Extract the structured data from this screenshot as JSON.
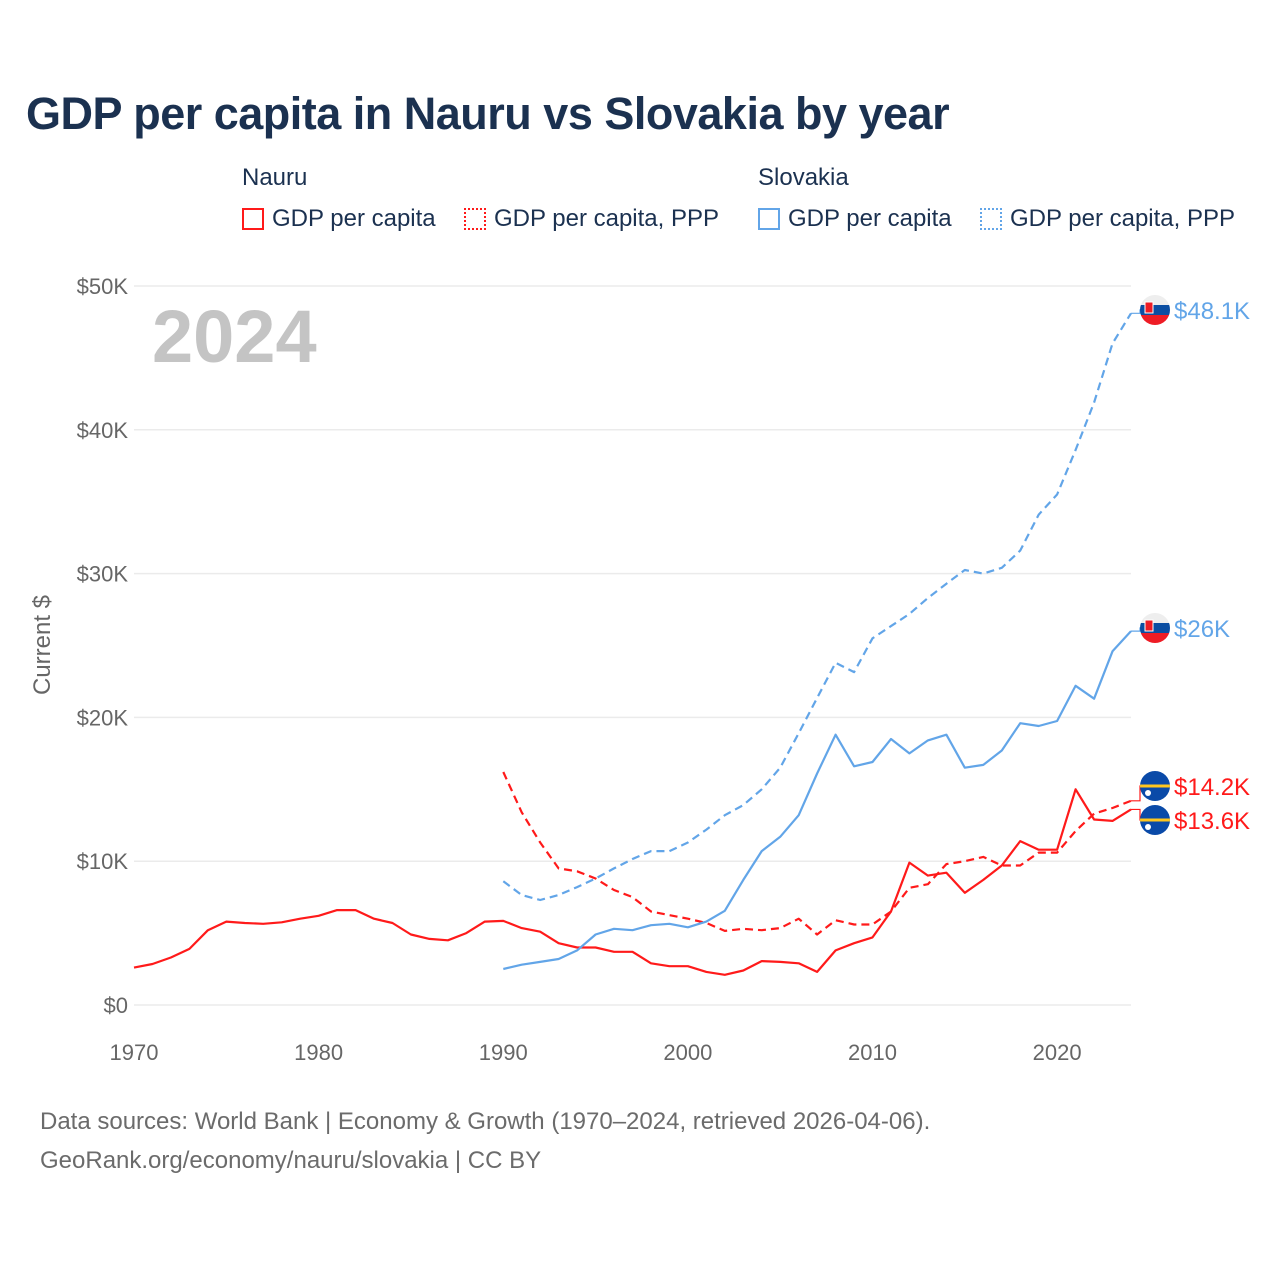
{
  "title": "GDP per capita in Nauru vs Slovakia by year",
  "legend": {
    "groups": [
      {
        "name": "Nauru",
        "items": [
          "GDP per capita",
          "GDP per capita, PPP"
        ]
      },
      {
        "name": "Slovakia",
        "items": [
          "GDP per capita",
          "GDP per capita, PPP"
        ]
      }
    ]
  },
  "footer": {
    "line1": "Data sources: World Bank | Economy & Growth (1970–2024, retrieved 2026-04-06).",
    "line2": "GeoRank.org/economy/nauru/slovakia | CC BY"
  },
  "chart_data": {
    "type": "line",
    "title": "GDP per capita in Nauru vs Slovakia by year",
    "ylabel": "Current $",
    "xlabel": "",
    "year_watermark": "2024",
    "xlim": [
      1970,
      2024
    ],
    "ylim": [
      0,
      50000
    ],
    "x_ticks": [
      "1970",
      "1980",
      "1990",
      "2000",
      "2010",
      "2020"
    ],
    "y_ticks": [
      "$0",
      "$10K",
      "$20K",
      "$30K",
      "$40K",
      "$50K"
    ],
    "grid": true,
    "colors": {
      "Nauru": "#ff1a1a",
      "Slovakia": "#62a5e8"
    },
    "series": [
      {
        "name": "Nauru GDP per capita",
        "country": "Nauru",
        "style": "solid",
        "start": 1970,
        "end_label": "$13.6K",
        "values": [
          2600,
          2850,
          3300,
          3900,
          5200,
          5800,
          5700,
          5650,
          5750,
          6000,
          6200,
          6600,
          6600,
          6000,
          5700,
          4900,
          4600,
          4500,
          5000,
          5800,
          5850,
          5350,
          5100,
          4300,
          4000,
          4000,
          3700,
          3700,
          2900,
          2700,
          2700,
          2300,
          2100,
          2400,
          3050,
          3000,
          2900,
          2300,
          3800,
          4300,
          4700,
          6500,
          9900,
          9000,
          9200,
          7800,
          8700,
          9700,
          11400,
          10800,
          10800,
          15000,
          12900,
          12800,
          13600
        ]
      },
      {
        "name": "Nauru GDP per capita, PPP",
        "country": "Nauru",
        "style": "dashed",
        "start": 1990,
        "end_label": "$14.2K",
        "values": [
          16200,
          13400,
          11300,
          9500,
          9300,
          8800,
          8000,
          7500,
          6500,
          6250,
          6000,
          5700,
          5150,
          5300,
          5200,
          5350,
          6000,
          4900,
          5900,
          5600,
          5600,
          6500,
          8150,
          8400,
          9800,
          10000,
          10300,
          9700,
          9700,
          10600,
          10600,
          12100,
          13300,
          13700,
          14200
        ]
      },
      {
        "name": "Slovakia GDP per capita",
        "country": "Slovakia",
        "style": "solid",
        "start": 1990,
        "end_label": "$26K",
        "values": [
          2500,
          2800,
          3000,
          3200,
          3800,
          4900,
          5300,
          5200,
          5550,
          5650,
          5400,
          5800,
          6550,
          8700,
          10700,
          11700,
          13200,
          16100,
          18800,
          16600,
          16900,
          18500,
          17500,
          18400,
          18800,
          16500,
          16700,
          17700,
          19600,
          19400,
          19750,
          22200,
          21300,
          24600,
          26000
        ]
      },
      {
        "name": "Slovakia GDP per capita, PPP",
        "country": "Slovakia",
        "style": "dashed",
        "start": 1990,
        "end_label": "$48.1K",
        "values": [
          8600,
          7650,
          7300,
          7650,
          8200,
          8800,
          9500,
          10150,
          10700,
          10700,
          11300,
          12200,
          13200,
          13900,
          15000,
          16500,
          18900,
          21350,
          23800,
          23150,
          25500,
          26350,
          27200,
          28300,
          29300,
          30250,
          30000,
          30400,
          31600,
          34100,
          35500,
          38600,
          41900,
          46000,
          48100
        ]
      }
    ]
  }
}
